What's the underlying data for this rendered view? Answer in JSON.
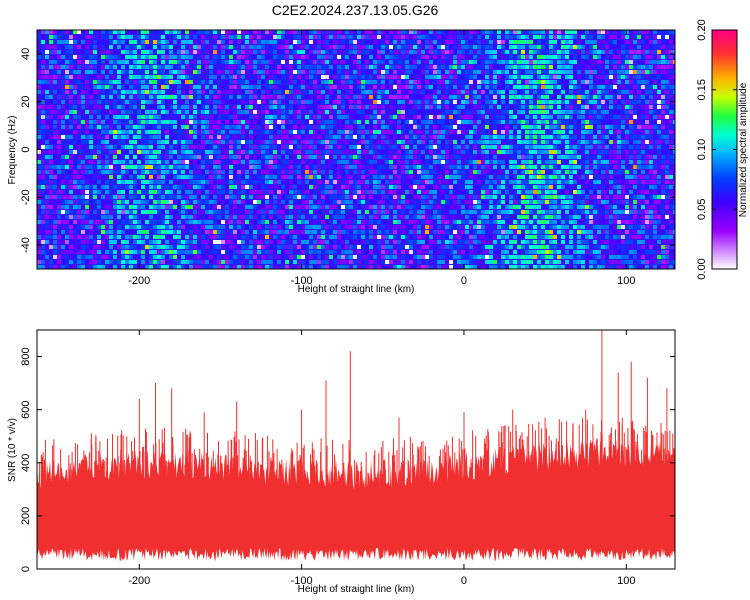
{
  "title": "C2E2.2024.237.13.05.G26",
  "chart_data": [
    {
      "type": "heatmap",
      "xlabel": "Height of straight line (km)",
      "ylabel": "Frequency (Hz)",
      "xlim": [
        -263,
        130
      ],
      "ylim": [
        -50,
        50
      ],
      "x_ticks": [
        -200,
        -100,
        0,
        100
      ],
      "y_ticks": [
        -40,
        -20,
        0,
        20,
        40
      ],
      "colorbar": {
        "label": "Normalized spectral amplitude",
        "range": [
          0,
          0.2
        ],
        "ticks": [
          "0.00",
          "0.05",
          "0.10",
          "0.15",
          "0.20"
        ],
        "colormap": [
          "#ffffff",
          "#d8a0ff",
          "#9a00ff",
          "#3c00ff",
          "#0040ff",
          "#00b0ff",
          "#00ffd0",
          "#20ff40",
          "#c8ff00",
          "#ffb000",
          "#ff3030",
          "#ff0080"
        ]
      },
      "grid": false
    },
    {
      "type": "area",
      "xlabel": "Height of straight line (km)",
      "ylabel": "SNR (10 * v/v)",
      "xlim": [
        -263,
        130
      ],
      "ylim": [
        0,
        900
      ],
      "x_ticks": [
        -200,
        -100,
        0,
        100
      ],
      "y_ticks": [
        0,
        200,
        400,
        600,
        800
      ],
      "series_color": "#f03030",
      "typical_band": [
        30,
        450
      ],
      "peaks": [
        {
          "x": -238,
          "y": 470
        },
        {
          "x": -200,
          "y": 640
        },
        {
          "x": -190,
          "y": 700
        },
        {
          "x": -180,
          "y": 680
        },
        {
          "x": -160,
          "y": 590
        },
        {
          "x": -140,
          "y": 630
        },
        {
          "x": -100,
          "y": 600
        },
        {
          "x": -85,
          "y": 710
        },
        {
          "x": -70,
          "y": 820
        },
        {
          "x": -40,
          "y": 570
        },
        {
          "x": 0,
          "y": 590
        },
        {
          "x": 30,
          "y": 600
        },
        {
          "x": 50,
          "y": 570
        },
        {
          "x": 75,
          "y": 600
        },
        {
          "x": 85,
          "y": 900
        },
        {
          "x": 95,
          "y": 740
        },
        {
          "x": 103,
          "y": 780
        },
        {
          "x": 113,
          "y": 720
        },
        {
          "x": 125,
          "y": 680
        }
      ],
      "grid": false
    }
  ]
}
